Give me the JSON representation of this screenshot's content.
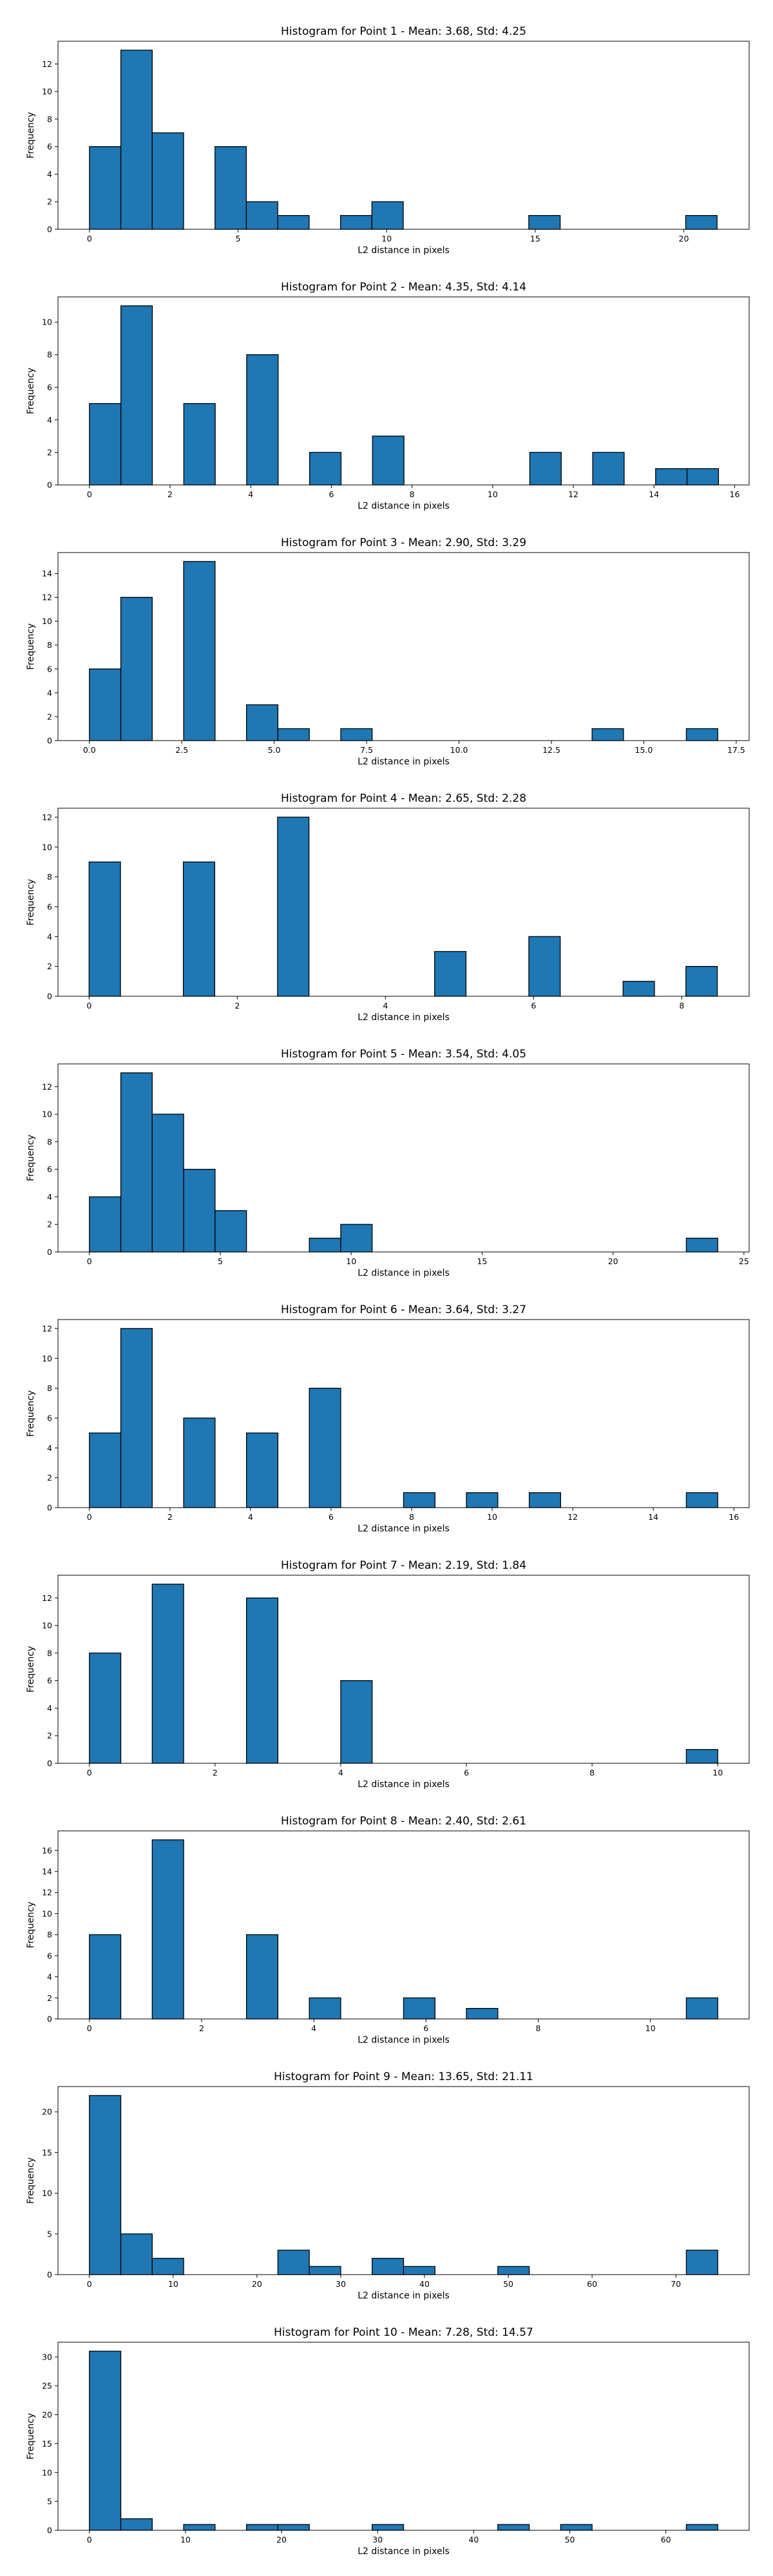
{
  "figure": {
    "background": "#ffffff",
    "bar_color": "#1f77b4",
    "edge_color": "#000000"
  },
  "chart_data": [
    {
      "type": "bar",
      "title": "Histogram for Point 1 - Mean: 3.68, Std: 4.25",
      "xlabel": "L2 distance in pixels",
      "ylabel": "Frequency",
      "xlim": [
        -1.06,
        22.2
      ],
      "ylim": [
        0,
        13.65
      ],
      "xticks": [
        0,
        5,
        10,
        15,
        20
      ],
      "xtick_labels": [
        "0",
        "5",
        "10",
        "15",
        "20"
      ],
      "yticks": [
        0,
        2,
        4,
        6,
        8,
        10,
        12
      ],
      "ytick_labels": [
        "0",
        "2",
        "4",
        "6",
        "8",
        "10",
        "12"
      ],
      "bin_edges": [
        0.0,
        1.056,
        2.112,
        3.168,
        4.224,
        5.28,
        6.336,
        7.392,
        8.448,
        9.504,
        10.56,
        11.616,
        12.672,
        13.728,
        14.784,
        15.84,
        16.896,
        17.952,
        19.008,
        20.064,
        21.12
      ],
      "values": [
        6,
        13,
        7,
        0,
        6,
        2,
        1,
        0,
        1,
        2,
        0,
        0,
        0,
        0,
        1,
        0,
        0,
        0,
        0,
        1
      ]
    },
    {
      "type": "bar",
      "title": "Histogram for Point 2 - Mean: 4.35, Std: 4.14",
      "xlabel": "L2 distance in pixels",
      "ylabel": "Frequency",
      "xlim": [
        -0.78,
        16.36
      ],
      "ylim": [
        0,
        11.55
      ],
      "xticks": [
        0,
        2,
        4,
        6,
        8,
        10,
        12,
        14,
        16
      ],
      "xtick_labels": [
        "0",
        "2",
        "4",
        "6",
        "8",
        "10",
        "12",
        "14",
        "16"
      ],
      "yticks": [
        0,
        2,
        4,
        6,
        8,
        10
      ],
      "ytick_labels": [
        "0",
        "2",
        "4",
        "6",
        "8",
        "10"
      ],
      "bin_edges": [
        0.0,
        0.78,
        1.56,
        2.34,
        3.12,
        3.9,
        4.68,
        5.46,
        6.24,
        7.02,
        7.8,
        8.58,
        9.36,
        10.14,
        10.92,
        11.7,
        12.48,
        13.26,
        14.04,
        14.82,
        15.6
      ],
      "values": [
        5,
        11,
        0,
        5,
        0,
        8,
        0,
        2,
        0,
        3,
        0,
        0,
        0,
        0,
        2,
        0,
        2,
        0,
        1,
        1
      ]
    },
    {
      "type": "bar",
      "title": "Histogram for Point 3 - Mean: 2.90, Std: 3.29",
      "xlabel": "L2 distance in pixels",
      "ylabel": "Frequency",
      "xlim": [
        -0.85,
        17.85
      ],
      "ylim": [
        0,
        15.75
      ],
      "xticks": [
        0,
        2.5,
        5,
        7.5,
        10,
        12.5,
        15,
        17.5
      ],
      "xtick_labels": [
        "0.0",
        "2.5",
        "5.0",
        "7.5",
        "10.0",
        "12.5",
        "15.0",
        "17.5"
      ],
      "yticks": [
        0,
        2,
        4,
        6,
        8,
        10,
        12,
        14
      ],
      "ytick_labels": [
        "0",
        "2",
        "4",
        "6",
        "8",
        "10",
        "12",
        "14"
      ],
      "bin_edges": [
        0.0,
        0.85,
        1.7,
        2.55,
        3.4,
        4.25,
        5.1,
        5.95,
        6.8,
        7.65,
        8.5,
        9.35,
        10.2,
        11.05,
        11.9,
        12.75,
        13.6,
        14.45,
        15.3,
        16.15,
        17.0
      ],
      "values": [
        6,
        12,
        0,
        15,
        0,
        3,
        1,
        0,
        1,
        0,
        0,
        0,
        0,
        0,
        0,
        0,
        1,
        0,
        0,
        1
      ]
    },
    {
      "type": "bar",
      "title": "Histogram for Point 4 - Mean: 2.65, Std: 2.28",
      "xlabel": "L2 distance in pixels",
      "ylabel": "Frequency",
      "xlim": [
        -0.42,
        8.91
      ],
      "ylim": [
        0,
        12.6
      ],
      "xticks": [
        0,
        2,
        4,
        6,
        8
      ],
      "xtick_labels": [
        "0",
        "2",
        "4",
        "6",
        "8"
      ],
      "yticks": [
        0,
        2,
        4,
        6,
        8,
        10,
        12
      ],
      "ytick_labels": [
        "0",
        "2",
        "4",
        "6",
        "8",
        "10",
        "12"
      ],
      "bin_edges": [
        0.0,
        0.424,
        0.848,
        1.272,
        1.696,
        2.12,
        2.544,
        2.968,
        3.392,
        3.816,
        4.24,
        4.664,
        5.088,
        5.512,
        5.936,
        6.36,
        6.784,
        7.208,
        7.632,
        8.056,
        8.48
      ],
      "values": [
        9,
        0,
        0,
        9,
        0,
        0,
        12,
        0,
        0,
        0,
        0,
        3,
        0,
        0,
        4,
        0,
        0,
        1,
        0,
        2
      ]
    },
    {
      "type": "bar",
      "title": "Histogram for Point 5 - Mean: 3.54, Std: 4.05",
      "xlabel": "L2 distance in pixels",
      "ylabel": "Frequency",
      "xlim": [
        -1.2,
        25.2
      ],
      "ylim": [
        0,
        13.65
      ],
      "xticks": [
        0,
        5,
        10,
        15,
        20,
        25
      ],
      "xtick_labels": [
        "0",
        "5",
        "10",
        "15",
        "20",
        "25"
      ],
      "yticks": [
        0,
        2,
        4,
        6,
        8,
        10,
        12
      ],
      "ytick_labels": [
        "0",
        "2",
        "4",
        "6",
        "8",
        "10",
        "12"
      ],
      "bin_edges": [
        0.0,
        1.2,
        2.4,
        3.6,
        4.8,
        6.0,
        7.2,
        8.4,
        9.6,
        10.8,
        12.0,
        13.2,
        14.4,
        15.6,
        16.8,
        18.0,
        19.2,
        20.4,
        21.6,
        22.8,
        24.0
      ],
      "values": [
        4,
        13,
        10,
        6,
        3,
        0,
        0,
        1,
        2,
        0,
        0,
        0,
        0,
        0,
        0,
        0,
        0,
        0,
        0,
        1
      ]
    },
    {
      "type": "bar",
      "title": "Histogram for Point 6 - Mean: 3.64, Std: 3.27",
      "xlabel": "L2 distance in pixels",
      "ylabel": "Frequency",
      "xlim": [
        -0.78,
        16.38
      ],
      "ylim": [
        0,
        12.6
      ],
      "xticks": [
        0,
        2,
        4,
        6,
        8,
        10,
        12,
        14,
        16
      ],
      "xtick_labels": [
        "0",
        "2",
        "4",
        "6",
        "8",
        "10",
        "12",
        "14",
        "16"
      ],
      "yticks": [
        0,
        2,
        4,
        6,
        8,
        10,
        12
      ],
      "ytick_labels": [
        "0",
        "2",
        "4",
        "6",
        "8",
        "10",
        "12"
      ],
      "bin_edges": [
        0.0,
        0.78,
        1.56,
        2.34,
        3.12,
        3.9,
        4.68,
        5.46,
        6.24,
        7.02,
        7.8,
        8.58,
        9.36,
        10.14,
        10.92,
        11.7,
        12.48,
        13.26,
        14.04,
        14.82,
        15.6
      ],
      "values": [
        5,
        12,
        0,
        6,
        0,
        5,
        0,
        8,
        0,
        0,
        1,
        0,
        1,
        0,
        1,
        0,
        0,
        0,
        0,
        1
      ]
    },
    {
      "type": "bar",
      "title": "Histogram for Point 7 - Mean: 2.19, Std: 1.84",
      "xlabel": "L2 distance in pixels",
      "ylabel": "Frequency",
      "xlim": [
        -0.5,
        10.5
      ],
      "ylim": [
        0,
        13.65
      ],
      "xticks": [
        0,
        2,
        4,
        6,
        8,
        10
      ],
      "xtick_labels": [
        "0",
        "2",
        "4",
        "6",
        "8",
        "10"
      ],
      "yticks": [
        0,
        2,
        4,
        6,
        8,
        10,
        12
      ],
      "ytick_labels": [
        "0",
        "2",
        "4",
        "6",
        "8",
        "10",
        "12"
      ],
      "bin_edges": [
        0.0,
        0.5,
        1.0,
        1.5,
        2.0,
        2.5,
        3.0,
        3.5,
        4.0,
        4.5,
        5.0,
        5.5,
        6.0,
        6.5,
        7.0,
        7.5,
        8.0,
        8.5,
        9.0,
        9.5,
        10.0
      ],
      "values": [
        8,
        0,
        13,
        0,
        0,
        12,
        0,
        0,
        6,
        0,
        0,
        0,
        0,
        0,
        0,
        0,
        0,
        0,
        0,
        1
      ]
    },
    {
      "type": "bar",
      "title": "Histogram for Point 8 - Mean: 2.40, Std: 2.61",
      "xlabel": "L2 distance in pixels",
      "ylabel": "Frequency",
      "xlim": [
        -0.56,
        11.76
      ],
      "ylim": [
        0,
        17.85
      ],
      "xticks": [
        0,
        2,
        4,
        6,
        8,
        10
      ],
      "xtick_labels": [
        "0",
        "2",
        "4",
        "6",
        "8",
        "10"
      ],
      "yticks": [
        0,
        2,
        4,
        6,
        8,
        10,
        12,
        14,
        16
      ],
      "ytick_labels": [
        "0",
        "2",
        "4",
        "6",
        "8",
        "10",
        "12",
        "14",
        "16"
      ],
      "bin_edges": [
        0.0,
        0.56,
        1.12,
        1.68,
        2.24,
        2.8,
        3.36,
        3.92,
        4.48,
        5.04,
        5.6,
        6.16,
        6.72,
        7.28,
        7.84,
        8.4,
        8.96,
        9.52,
        10.08,
        10.64,
        11.2
      ],
      "values": [
        8,
        0,
        17,
        0,
        0,
        8,
        0,
        2,
        0,
        0,
        2,
        0,
        1,
        0,
        0,
        0,
        0,
        0,
        0,
        2
      ]
    },
    {
      "type": "bar",
      "title": "Histogram for Point 9 - Mean: 13.65, Std: 21.11",
      "xlabel": "L2 distance in pixels",
      "ylabel": "Frequency",
      "xlim": [
        -3.75,
        78.75
      ],
      "ylim": [
        0,
        23.1
      ],
      "xticks": [
        0,
        10,
        20,
        30,
        40,
        50,
        60,
        70
      ],
      "xtick_labels": [
        "0",
        "10",
        "20",
        "30",
        "40",
        "50",
        "60",
        "70"
      ],
      "yticks": [
        0,
        5,
        10,
        15,
        20
      ],
      "ytick_labels": [
        "0",
        "5",
        "10",
        "15",
        "20"
      ],
      "bin_edges": [
        0.0,
        3.75,
        7.5,
        11.25,
        15.0,
        18.75,
        22.5,
        26.25,
        30.0,
        33.75,
        37.5,
        41.25,
        45.0,
        48.75,
        52.5,
        56.25,
        60.0,
        63.75,
        67.5,
        71.25,
        75.0
      ],
      "values": [
        22,
        5,
        2,
        0,
        0,
        0,
        3,
        1,
        0,
        2,
        1,
        0,
        0,
        1,
        0,
        0,
        0,
        0,
        0,
        3
      ]
    },
    {
      "type": "bar",
      "title": "Histogram for Point 10 - Mean: 7.28, Std: 14.57",
      "xlabel": "L2 distance in pixels",
      "ylabel": "Frequency",
      "xlim": [
        -3.27,
        68.67
      ],
      "ylim": [
        0,
        32.55
      ],
      "xticks": [
        0,
        10,
        20,
        30,
        40,
        50,
        60
      ],
      "xtick_labels": [
        "0",
        "10",
        "20",
        "30",
        "40",
        "50",
        "60"
      ],
      "yticks": [
        0,
        5,
        10,
        15,
        20,
        25,
        30
      ],
      "ytick_labels": [
        "0",
        "5",
        "10",
        "15",
        "20",
        "25",
        "30"
      ],
      "bin_edges": [
        0.0,
        3.27,
        6.54,
        9.81,
        13.08,
        16.35,
        19.62,
        22.89,
        26.16,
        29.43,
        32.7,
        35.97,
        39.24,
        42.51,
        45.78,
        49.05,
        52.32,
        55.59,
        58.86,
        62.13,
        65.4
      ],
      "values": [
        31,
        2,
        0,
        1,
        0,
        1,
        1,
        0,
        0,
        1,
        0,
        0,
        0,
        1,
        0,
        1,
        0,
        0,
        0,
        1
      ]
    }
  ]
}
